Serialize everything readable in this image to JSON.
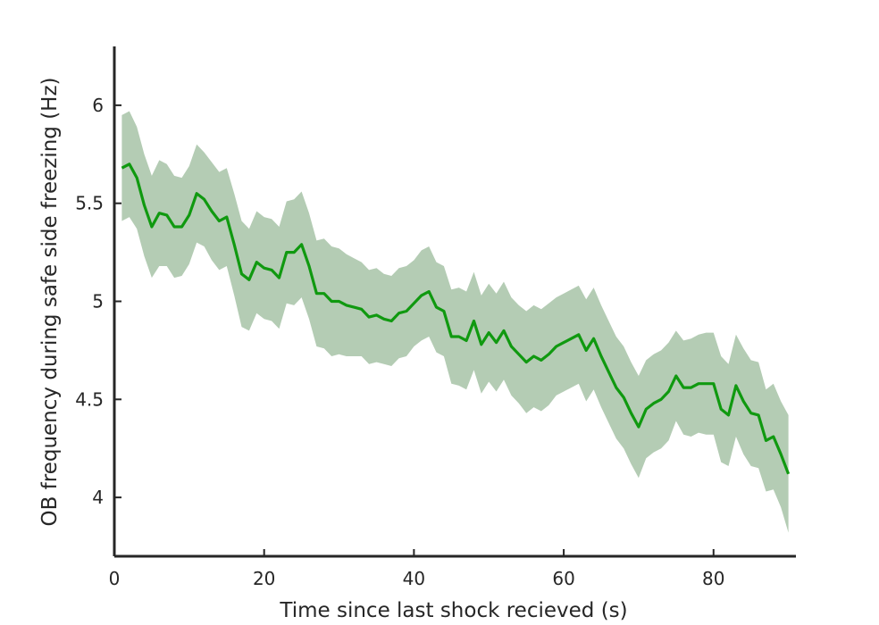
{
  "chart_data": {
    "type": "line",
    "title": "",
    "xlabel": "Time since last shock recieved (s)",
    "ylabel": "OB frequency during safe side freezing (Hz)",
    "xlim": [
      0,
      91
    ],
    "ylim": [
      3.7,
      6.3
    ],
    "x_ticks": [
      0,
      20,
      40,
      60,
      80
    ],
    "y_ticks": [
      4,
      4.5,
      5,
      5.5,
      6
    ],
    "x_tick_labels": [
      "0",
      "20",
      "40",
      "60",
      "80"
    ],
    "y_tick_labels": [
      "4",
      "4.5",
      "5",
      "5.5",
      "6"
    ],
    "grid": false,
    "legend": "none",
    "colors": {
      "line": "#109910",
      "band": "#b4ccb4",
      "axis": "#262626"
    },
    "x": [
      1,
      2,
      3,
      4,
      5,
      6,
      7,
      8,
      9,
      10,
      11,
      12,
      13,
      14,
      15,
      16,
      17,
      18,
      19,
      20,
      21,
      22,
      23,
      24,
      25,
      26,
      27,
      28,
      29,
      30,
      31,
      32,
      33,
      34,
      35,
      36,
      37,
      38,
      39,
      40,
      41,
      42,
      43,
      44,
      45,
      46,
      47,
      48,
      49,
      50,
      51,
      52,
      53,
      54,
      55,
      56,
      57,
      58,
      59,
      60,
      61,
      62,
      63,
      64,
      65,
      66,
      67,
      68,
      69,
      70,
      71,
      72,
      73,
      74,
      75,
      76,
      77,
      78,
      79,
      80,
      81,
      82,
      83,
      84,
      85,
      86,
      87,
      88,
      89,
      90
    ],
    "series": [
      {
        "values": [
          5.68,
          5.7,
          5.63,
          5.49,
          5.38,
          5.45,
          5.44,
          5.38,
          5.38,
          5.44,
          5.55,
          5.52,
          5.46,
          5.41,
          5.43,
          5.29,
          5.14,
          5.11,
          5.2,
          5.17,
          5.16,
          5.12,
          5.25,
          5.25,
          5.29,
          5.18,
          5.04,
          5.04,
          5.0,
          5.0,
          4.98,
          4.97,
          4.96,
          4.92,
          4.93,
          4.91,
          4.9,
          4.94,
          4.95,
          4.99,
          5.03,
          5.05,
          4.97,
          4.95,
          4.82,
          4.82,
          4.8,
          4.9,
          4.78,
          4.84,
          4.79,
          4.85,
          4.77,
          4.73,
          4.69,
          4.72,
          4.7,
          4.73,
          4.77,
          4.79,
          4.81,
          4.83,
          4.75,
          4.81,
          4.72,
          4.64,
          4.56,
          4.51,
          4.43,
          4.36,
          4.45,
          4.48,
          4.5,
          4.54,
          4.62,
          4.56,
          4.56,
          4.58,
          4.58,
          4.58,
          4.45,
          4.42,
          4.57,
          4.49,
          4.43,
          4.42,
          4.29,
          4.31,
          4.22,
          4.12
        ],
        "upper": [
          5.95,
          5.97,
          5.89,
          5.75,
          5.64,
          5.72,
          5.7,
          5.64,
          5.63,
          5.69,
          5.8,
          5.76,
          5.71,
          5.66,
          5.68,
          5.55,
          5.41,
          5.37,
          5.46,
          5.43,
          5.42,
          5.38,
          5.51,
          5.52,
          5.56,
          5.45,
          5.31,
          5.32,
          5.28,
          5.27,
          5.24,
          5.22,
          5.2,
          5.16,
          5.17,
          5.14,
          5.13,
          5.17,
          5.18,
          5.21,
          5.26,
          5.28,
          5.2,
          5.18,
          5.06,
          5.07,
          5.05,
          5.15,
          5.03,
          5.09,
          5.04,
          5.1,
          5.02,
          4.98,
          4.95,
          4.98,
          4.96,
          4.99,
          5.02,
          5.04,
          5.06,
          5.08,
          5.01,
          5.07,
          4.98,
          4.9,
          4.82,
          4.77,
          4.69,
          4.62,
          4.7,
          4.73,
          4.75,
          4.79,
          4.85,
          4.8,
          4.81,
          4.83,
          4.84,
          4.84,
          4.72,
          4.68,
          4.83,
          4.76,
          4.7,
          4.69,
          4.55,
          4.58,
          4.49,
          4.42
        ],
        "lower": [
          5.41,
          5.43,
          5.37,
          5.23,
          5.12,
          5.18,
          5.18,
          5.12,
          5.13,
          5.19,
          5.3,
          5.28,
          5.21,
          5.16,
          5.18,
          5.03,
          4.87,
          4.85,
          4.94,
          4.91,
          4.9,
          4.86,
          4.99,
          4.98,
          5.02,
          4.91,
          4.77,
          4.76,
          4.72,
          4.73,
          4.72,
          4.72,
          4.72,
          4.68,
          4.69,
          4.68,
          4.67,
          4.71,
          4.72,
          4.77,
          4.8,
          4.82,
          4.74,
          4.72,
          4.58,
          4.57,
          4.55,
          4.65,
          4.53,
          4.59,
          4.54,
          4.6,
          4.52,
          4.48,
          4.43,
          4.46,
          4.44,
          4.47,
          4.52,
          4.54,
          4.56,
          4.58,
          4.49,
          4.55,
          4.46,
          4.38,
          4.3,
          4.25,
          4.17,
          4.1,
          4.2,
          4.23,
          4.25,
          4.29,
          4.39,
          4.32,
          4.31,
          4.33,
          4.32,
          4.32,
          4.18,
          4.16,
          4.31,
          4.22,
          4.16,
          4.15,
          4.03,
          4.04,
          3.95,
          3.82
        ]
      }
    ]
  }
}
